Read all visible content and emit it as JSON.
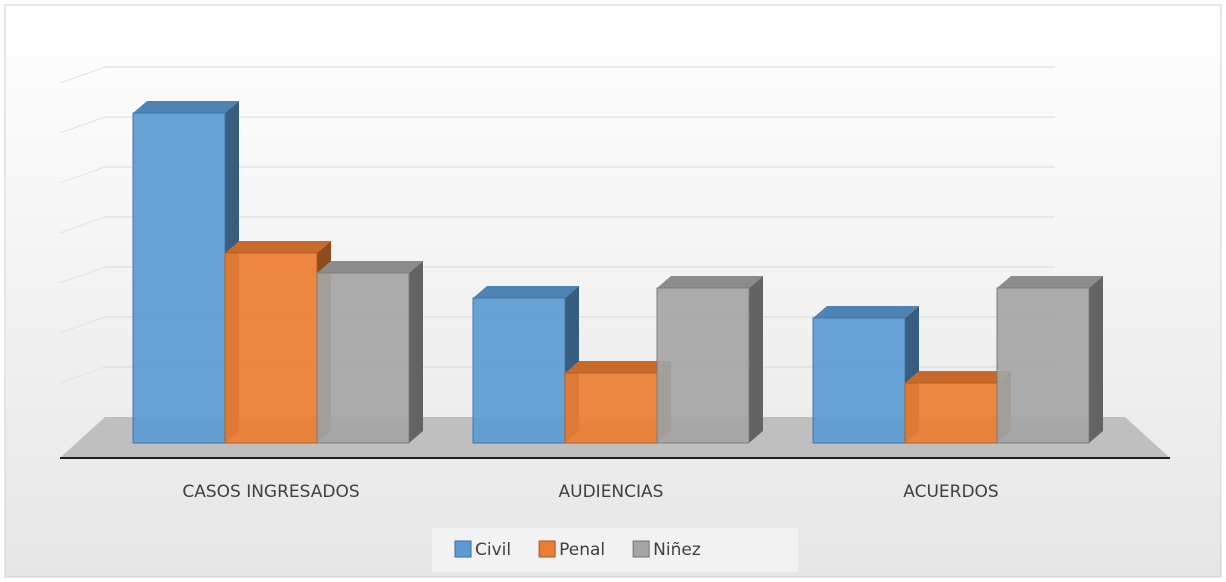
{
  "chart_data": {
    "type": "bar3d",
    "categories": [
      "CASOS INGRESADOS",
      "AUDIENCIAS",
      "ACUERDOS"
    ],
    "series": [
      {
        "name": "Civil",
        "color": "#5b9bd5",
        "values": [
          6.6,
          2.9,
          2.5
        ]
      },
      {
        "name": "Penal",
        "color": "#ed7d31",
        "values": [
          3.8,
          1.4,
          1.2
        ]
      },
      {
        "name": "Niñez",
        "color": "#a5a5a5",
        "values": [
          3.4,
          3.1,
          3.1
        ]
      }
    ],
    "ylim": [
      0,
      7
    ],
    "yticks": [
      0,
      1,
      2,
      3,
      4,
      5,
      6,
      7
    ],
    "grid": true,
    "legend": "bottom"
  }
}
